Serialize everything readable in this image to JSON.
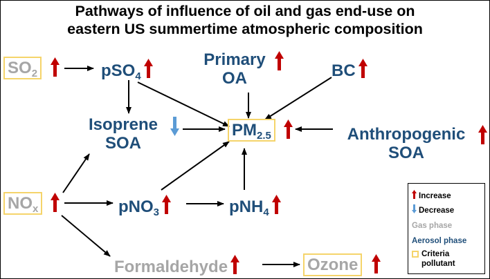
{
  "title_line1": "Pathways of influence of oil and gas end-use on",
  "title_line2": "eastern US summertime atmospheric composition",
  "nodes": {
    "so2": {
      "main": "SO",
      "sub": "2"
    },
    "pso4": {
      "main": "pSO",
      "sub": "4"
    },
    "primary_oa": {
      "line1": "Primary",
      "line2": "OA"
    },
    "bc": {
      "main": "BC"
    },
    "isoprene_soa": {
      "line1": "Isoprene",
      "line2": "SOA"
    },
    "pm25": {
      "main": "PM",
      "sub": "2.5"
    },
    "anthropogenic_soa": {
      "line1": "Anthropogenic",
      "line2": "SOA"
    },
    "nox": {
      "main": "NO",
      "sub": "x"
    },
    "pno3": {
      "main": "pNO",
      "sub": "3"
    },
    "pnh4": {
      "main": "pNH",
      "sub": "4"
    },
    "formaldehyde": {
      "main": "Formaldehyde"
    },
    "ozone": {
      "main": "Ozone"
    }
  },
  "legend": {
    "increase": "Increase",
    "decrease": "Decrease",
    "gas_phase": "Gas phase",
    "aerosol_phase": "Aerosol phase",
    "criteria_line1": "Criteria",
    "criteria_line2": "pollutant"
  },
  "colors": {
    "increase": "#c00000",
    "decrease": "#5b9bd5",
    "gas_phase": "#a6a6a6",
    "aerosol_phase": "#1f4e79",
    "criteria_box": "#f5d46a"
  }
}
